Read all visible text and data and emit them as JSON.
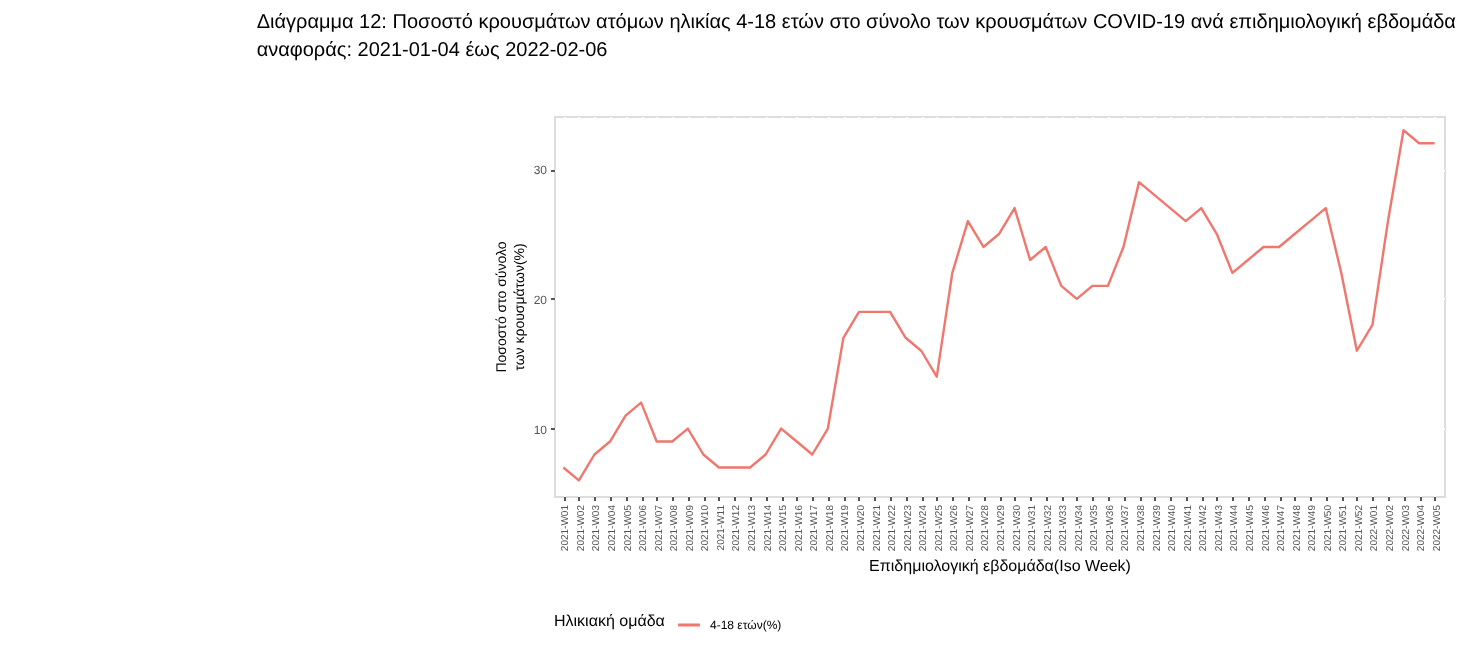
{
  "chart_data": {
    "type": "line",
    "title": "Διάγραμμα 12: Ποσοστό κρουσμάτων ατόμων ηλικίας 4-18 ετών στο σύνολο των κρουσμάτων COVID-19 ανά επιδημιολογική εβδομάδα αναφοράς: 2021-01-04 έως 2022-02-06",
    "xlabel": "Επιδημιολογική εβδομάδα(Iso Week)",
    "ylabel": "Ποσοστό στο σύνολο των κρουσμάτων(%)",
    "legend_title": "Ηλικιακή ομάδα",
    "categories": [
      "2021-W01",
      "2021-W02",
      "2021-W03",
      "2021-W04",
      "2021-W05",
      "2021-W06",
      "2021-W07",
      "2021-W08",
      "2021-W09",
      "2021-W10",
      "2021-W11",
      "2021-W12",
      "2021-W13",
      "2021-W14",
      "2021-W15",
      "2021-W16",
      "2021-W17",
      "2021-W18",
      "2021-W19",
      "2021-W20",
      "2021-W21",
      "2021-W22",
      "2021-W23",
      "2021-W24",
      "2021-W25",
      "2021-W26",
      "2021-W27",
      "2021-W28",
      "2021-W29",
      "2021-W30",
      "2021-W31",
      "2021-W32",
      "2021-W33",
      "2021-W34",
      "2021-W35",
      "2021-W36",
      "2021-W37",
      "2021-W38",
      "2021-W39",
      "2021-W40",
      "2021-W41",
      "2021-W42",
      "2021-W43",
      "2021-W44",
      "2021-W45",
      "2021-W46",
      "2021-W47",
      "2021-W48",
      "2021-W49",
      "2021-W50",
      "2021-W51",
      "2021-W52",
      "2022-W01",
      "2022-W02",
      "2022-W03",
      "2022-W04",
      "2022-W05"
    ],
    "series": [
      {
        "name": "4-18 ετών(%)",
        "color": "#f0776d",
        "values": [
          7,
          6,
          8,
          9,
          11,
          12,
          9,
          9,
          10,
          8,
          7,
          7,
          7,
          8,
          10,
          9,
          8,
          10,
          17,
          19,
          19,
          19,
          17,
          16,
          14,
          22,
          26,
          24,
          25,
          27,
          23,
          24,
          21,
          20,
          21,
          21,
          24,
          29,
          28,
          27,
          26,
          27,
          25,
          22,
          23,
          24,
          24,
          25,
          26,
          27,
          22,
          16,
          18,
          26,
          33,
          32,
          32
        ]
      }
    ],
    "ylim": [
      4.8,
      34.1
    ],
    "yticks": [
      10,
      20,
      30
    ],
    "grid": true,
    "legend": "bottom",
    "marker": "none",
    "line_style": "solid"
  }
}
